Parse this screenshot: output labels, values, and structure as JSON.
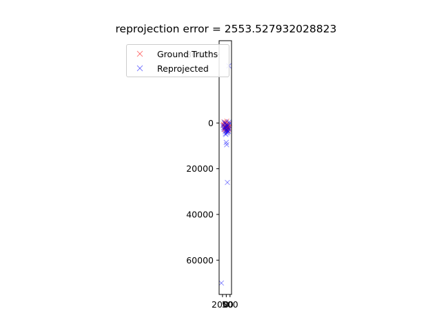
{
  "chart_data": {
    "type": "scatter",
    "title": "reprojection error = 2553.527932028823",
    "xlabel": "",
    "ylabel": "",
    "xlim": [
      -1900,
      1400
    ],
    "ylim": [
      75000,
      -36000
    ],
    "y_inverted": true,
    "grid": false,
    "legend_placement": "upper-left",
    "x_tick_labels": [
      {
        "value": -1000,
        "label": "2000"
      },
      {
        "value": 0,
        "label": "0"
      },
      {
        "value": 1000,
        "label": "500"
      }
    ],
    "y_ticks": [
      {
        "value": -30000,
        "label": "−30000"
      },
      {
        "value": 0,
        "label": "0"
      },
      {
        "value": 20000,
        "label": "20000"
      },
      {
        "value": 40000,
        "label": "40000"
      },
      {
        "value": 60000,
        "label": "60000"
      }
    ],
    "series": [
      {
        "name": "Ground Truths",
        "color": "#ff0000",
        "marker": "x",
        "points": [
          [
            -600,
            -500
          ],
          [
            -300,
            300
          ],
          [
            0,
            800
          ],
          [
            200,
            1200
          ],
          [
            400,
            1600
          ],
          [
            -500,
            1800
          ],
          [
            -200,
            2200
          ],
          [
            100,
            2500
          ],
          [
            500,
            2800
          ],
          [
            -400,
            3000
          ],
          [
            300,
            3200
          ],
          [
            -100,
            -200
          ],
          [
            600,
            400
          ],
          [
            -700,
            1000
          ],
          [
            800,
            1400
          ],
          [
            -300,
            2000
          ],
          [
            200,
            3500
          ],
          [
            0,
            600
          ],
          [
            450,
            2400
          ],
          [
            -550,
            2700
          ],
          [
            150,
            -800
          ],
          [
            -150,
            1500
          ],
          [
            700,
            2100
          ],
          [
            -800,
            500
          ],
          [
            350,
            1900
          ]
        ]
      },
      {
        "name": "Reprojected",
        "color": "#0000ff",
        "marker": "x",
        "points": [
          [
            700,
            -25000
          ],
          [
            -400,
            200
          ],
          [
            100,
            700
          ],
          [
            300,
            1300
          ],
          [
            -200,
            1700
          ],
          [
            500,
            2300
          ],
          [
            -600,
            2600
          ],
          [
            0,
            3100
          ],
          [
            400,
            3400
          ],
          [
            -300,
            3800
          ],
          [
            200,
            4400
          ],
          [
            -100,
            5000
          ],
          [
            600,
            1000
          ],
          [
            -700,
            2000
          ],
          [
            800,
            -500
          ],
          [
            -500,
            -300
          ],
          [
            100,
            2900
          ],
          [
            300,
            4000
          ],
          [
            0,
            8500
          ],
          [
            100,
            9500
          ],
          [
            300,
            26000
          ],
          [
            -1300,
            70000
          ],
          [
            900,
            200
          ],
          [
            -900,
            1200
          ],
          [
            550,
            3600
          ],
          [
            -250,
            4700
          ],
          [
            150,
            1800
          ],
          [
            750,
            2700
          ]
        ]
      }
    ]
  }
}
